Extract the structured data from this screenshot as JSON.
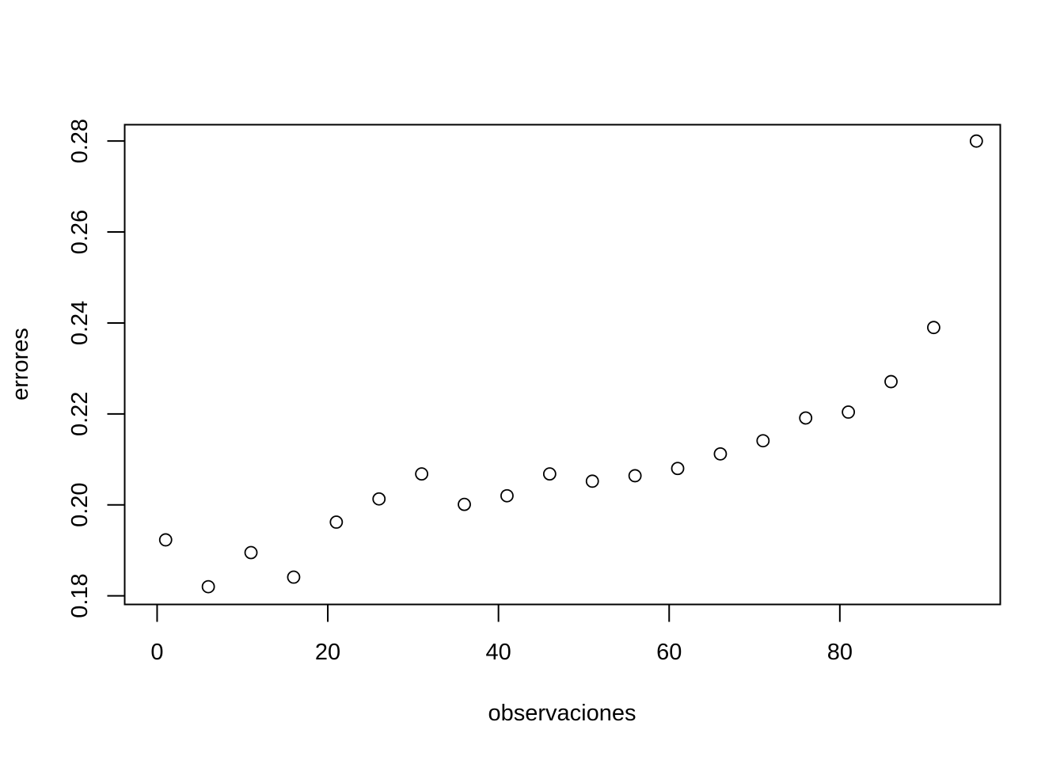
{
  "chart_data": {
    "type": "scatter",
    "xlabel": "observaciones",
    "ylabel": "errores",
    "xlim": [
      -3.8,
      98.8
    ],
    "ylim": [
      0.1781,
      0.2836
    ],
    "x_ticks": [
      0,
      20,
      40,
      60,
      80
    ],
    "x_tick_labels": [
      "0",
      "20",
      "40",
      "60",
      "80"
    ],
    "y_ticks": [
      0.18,
      0.2,
      0.22,
      0.24,
      0.26,
      0.28
    ],
    "y_tick_labels": [
      "0.18",
      "0.20",
      "0.22",
      "0.24",
      "0.26",
      "0.28"
    ],
    "grid": false,
    "marker": "open-circle",
    "series": [
      {
        "x": [
          1,
          6,
          11,
          16,
          21,
          26,
          31,
          36,
          41,
          46,
          51,
          56,
          61,
          66,
          71,
          76,
          81,
          86,
          91,
          96
        ],
        "y": [
          0.1923,
          0.182,
          0.1895,
          0.1841,
          0.1962,
          0.2013,
          0.2068,
          0.2001,
          0.202,
          0.2068,
          0.2052,
          0.2064,
          0.208,
          0.2112,
          0.2141,
          0.2191,
          0.2204,
          0.2271,
          0.239,
          0.28
        ]
      }
    ]
  }
}
